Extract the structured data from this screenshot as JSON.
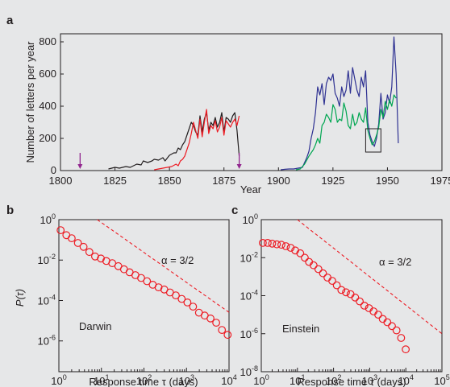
{
  "colors": {
    "background": "#e6e7e8",
    "axis": "#231f20",
    "darwin": "#231f20",
    "darwin_series2": "#ed1c24",
    "einstein": "#2e3192",
    "einstein_series2": "#00a651",
    "markers": "#ed1c24",
    "arrows": "#92278f"
  },
  "chart_data": [
    {
      "panel_label": "a",
      "type": "line",
      "xlabel": "Year",
      "ylabel": "Number of letters per year",
      "xlim": [
        1800,
        1975
      ],
      "ylim": [
        0,
        850
      ],
      "xticks": [
        "1800",
        "1825",
        "1850",
        "1875",
        "1900",
        "1925",
        "1950",
        "1975"
      ],
      "yticks": [
        "0",
        "200",
        "400",
        "600",
        "800"
      ],
      "grid": false,
      "legend": "none",
      "annotations": {
        "arrows_at_years": [
          1809,
          1882
        ],
        "highlight_box": {
          "x": [
            1940,
            1947
          ],
          "y": [
            115,
            260
          ]
        }
      },
      "series": [
        {
          "color": "#231f20",
          "x": [
            1822,
            1825,
            1827,
            1830,
            1832,
            1835,
            1837,
            1838,
            1840,
            1842,
            1843,
            1845,
            1847,
            1848,
            1850,
            1852,
            1853,
            1854,
            1855,
            1856,
            1857,
            1858,
            1859,
            1860,
            1861,
            1862,
            1863,
            1864,
            1865,
            1866,
            1867,
            1868,
            1869,
            1870,
            1871,
            1872,
            1873,
            1874,
            1875,
            1876,
            1877,
            1878,
            1879,
            1880,
            1881,
            1882
          ],
          "values": [
            10,
            20,
            15,
            25,
            20,
            40,
            35,
            60,
            50,
            60,
            70,
            65,
            80,
            60,
            95,
            110,
            110,
            140,
            130,
            160,
            180,
            220,
            260,
            300,
            280,
            240,
            220,
            340,
            240,
            320,
            360,
            250,
            300,
            280,
            330,
            270,
            300,
            360,
            240,
            330,
            320,
            300,
            340,
            360,
            250,
            90
          ]
        },
        {
          "color": "#ed1c24",
          "x": [
            1843,
            1845,
            1847,
            1849,
            1851,
            1853,
            1854,
            1855,
            1856,
            1857,
            1858,
            1859,
            1860,
            1861,
            1862,
            1863,
            1864,
            1865,
            1866,
            1867,
            1868,
            1869,
            1870,
            1871,
            1872,
            1873,
            1874,
            1875,
            1876,
            1877,
            1878,
            1879,
            1880,
            1881,
            1882
          ],
          "values": [
            5,
            10,
            15,
            20,
            25,
            40,
            30,
            60,
            70,
            90,
            130,
            170,
            230,
            300,
            250,
            200,
            320,
            210,
            300,
            380,
            230,
            280,
            260,
            310,
            240,
            270,
            330,
            220,
            310,
            290,
            270,
            300,
            320,
            280,
            340
          ]
        },
        {
          "color": "#2e3192",
          "x": [
            1901,
            1903,
            1905,
            1907,
            1909,
            1911,
            1912,
            1913,
            1914,
            1915,
            1916,
            1917,
            1918,
            1919,
            1920,
            1921,
            1922,
            1923,
            1924,
            1925,
            1926,
            1927,
            1928,
            1929,
            1930,
            1931,
            1932,
            1933,
            1934,
            1935,
            1936,
            1937,
            1938,
            1939,
            1940,
            1941,
            1942,
            1943,
            1944,
            1945,
            1946,
            1947,
            1948,
            1949,
            1950,
            1951,
            1952,
            1953,
            1954,
            1955
          ],
          "values": [
            5,
            8,
            10,
            10,
            15,
            20,
            50,
            80,
            120,
            200,
            260,
            360,
            520,
            470,
            540,
            410,
            540,
            580,
            560,
            600,
            480,
            450,
            400,
            520,
            460,
            500,
            620,
            480,
            640,
            570,
            500,
            460,
            580,
            520,
            620,
            300,
            220,
            180,
            150,
            200,
            290,
            480,
            320,
            360,
            470,
            420,
            520,
            830,
            600,
            170
          ]
        },
        {
          "color": "#00a651",
          "x": [
            1908,
            1910,
            1912,
            1914,
            1916,
            1917,
            1918,
            1919,
            1920,
            1921,
            1922,
            1923,
            1924,
            1925,
            1926,
            1927,
            1928,
            1929,
            1930,
            1931,
            1932,
            1933,
            1934,
            1935,
            1936,
            1937,
            1938,
            1939,
            1940,
            1941,
            1942,
            1943,
            1944,
            1945,
            1946,
            1947,
            1948,
            1949,
            1950,
            1951,
            1952,
            1953,
            1954
          ],
          "values": [
            5,
            10,
            40,
            90,
            130,
            160,
            200,
            170,
            280,
            300,
            350,
            330,
            300,
            410,
            380,
            300,
            320,
            310,
            420,
            370,
            280,
            260,
            350,
            280,
            300,
            360,
            320,
            300,
            390,
            250,
            200,
            160,
            180,
            220,
            270,
            380,
            330,
            430,
            380,
            440,
            400,
            470,
            450
          ]
        }
      ]
    },
    {
      "panel_label": "b",
      "type": "scatter",
      "xscale": "log",
      "yscale": "log",
      "xlabel": "Response time τ (days)",
      "ylabel": "P(τ)",
      "xlim": [
        1,
        10000
      ],
      "ylim": [
        3e-08,
        1
      ],
      "xticks": [
        1,
        10,
        100,
        1000,
        10000
      ],
      "yticks": [
        1,
        0.01,
        0.0001,
        1e-06
      ],
      "series_label": "Darwin",
      "slope_label": "α = 3/2",
      "slope_line": {
        "x": [
          8,
          10000
        ],
        "y": [
          1,
          2.6e-05
        ]
      },
      "x": [
        1.1,
        1.5,
        2.0,
        2.8,
        3.8,
        5.2,
        7.1,
        9.7,
        13,
        18,
        25,
        34,
        46,
        63,
        86,
        118,
        161,
        220,
        300,
        410,
        560,
        770,
        1050,
        1430,
        1960,
        2680,
        3660,
        5000,
        6800,
        9300
      ],
      "values": [
        0.3,
        0.17,
        0.12,
        0.07,
        0.045,
        0.025,
        0.015,
        0.012,
        0.009,
        0.007,
        0.005,
        0.0035,
        0.0025,
        0.0018,
        0.0013,
        0.0009,
        0.0006,
        0.00045,
        0.00035,
        0.00025,
        0.00018,
        0.00012,
        8e-05,
        5e-05,
        2.5e-05,
        1.8e-05,
        1.3e-05,
        8e-06,
        3.5e-06,
        2e-06
      ]
    },
    {
      "panel_label": "c",
      "type": "scatter",
      "xscale": "log",
      "yscale": "log",
      "xlabel": "Response time τ (days)",
      "ylabel": "",
      "xlim": [
        1,
        100000
      ],
      "ylim": [
        1e-08,
        1
      ],
      "xticks": [
        1,
        10,
        100,
        1000,
        10000,
        100000
      ],
      "yticks": [
        1,
        0.01,
        0.0001,
        1e-06,
        1e-08
      ],
      "series_label": "Einstein",
      "slope_label": "α = 3/2",
      "slope_line": {
        "x": [
          10,
          100000
        ],
        "y": [
          1,
          1e-06
        ]
      },
      "x": [
        1.1,
        1.5,
        2.0,
        2.7,
        3.6,
        4.8,
        6.5,
        8.7,
        12,
        16,
        21,
        28,
        38,
        51,
        68,
        92,
        123,
        165,
        221,
        296,
        397,
        532,
        713,
        955,
        1280,
        1720,
        2300,
        3080,
        4130,
        5530,
        7410,
        9940
      ],
      "values": [
        0.06,
        0.06,
        0.055,
        0.05,
        0.048,
        0.04,
        0.033,
        0.024,
        0.017,
        0.01,
        0.006,
        0.004,
        0.0025,
        0.0015,
        0.0009,
        0.0006,
        0.00035,
        0.0002,
        0.00015,
        0.00012,
        8e-05,
        5e-05,
        3e-05,
        2.2e-05,
        1.5e-05,
        1e-05,
        6e-06,
        4e-06,
        2.5e-06,
        1.5e-06,
        6e-07,
        1.5e-07
      ]
    }
  ]
}
